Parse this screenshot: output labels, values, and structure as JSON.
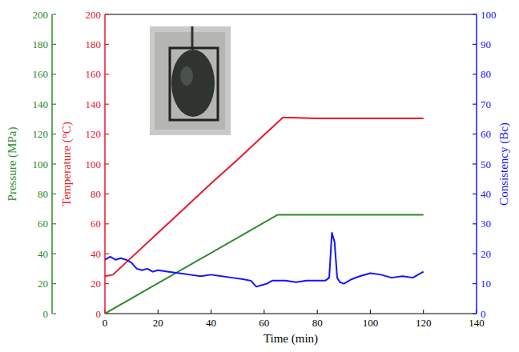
{
  "chart_data": {
    "type": "line",
    "x_label": "Time (min)",
    "y_label": "Temperature (°C)",
    "y2_label": "Consistency (Bc)",
    "y3_label": "Pressure (MPa)",
    "xlim": [
      0,
      140
    ],
    "xticks": [
      0,
      20,
      40,
      60,
      80,
      100,
      120,
      140
    ],
    "ylim": [
      0,
      200
    ],
    "yticks": [
      0,
      20,
      40,
      60,
      80,
      100,
      120,
      140,
      160,
      180,
      200
    ],
    "y2lim": [
      0,
      100
    ],
    "y2ticks": [
      0,
      10,
      20,
      30,
      40,
      50,
      60,
      70,
      80,
      90,
      100
    ],
    "y3lim": [
      0,
      200
    ],
    "y3ticks": [
      0,
      20,
      40,
      60,
      80,
      100,
      120,
      140,
      160,
      180,
      200
    ],
    "grid": false,
    "series": [
      {
        "axis": "y",
        "color": "#e8192c",
        "x": [
          0,
          3,
          10,
          20,
          30,
          40,
          50,
          60,
          67,
          70,
          80,
          90,
          100,
          110,
          120
        ],
        "values": [
          25,
          26,
          37.5,
          54,
          70.5,
          87,
          103,
          119.5,
          131,
          131,
          130.5,
          130.5,
          130.5,
          130.5,
          130.5
        ]
      },
      {
        "axis": "y3",
        "color": "#2e8b2e",
        "x": [
          0,
          65,
          120
        ],
        "values": [
          0,
          66,
          66
        ]
      },
      {
        "axis": "y2",
        "color": "#1414ff",
        "x": [
          0,
          2,
          4,
          6,
          8,
          10,
          12,
          14,
          16,
          18,
          20,
          24,
          28,
          32,
          36,
          40,
          44,
          48,
          52,
          55,
          57,
          59,
          61,
          63,
          65,
          68,
          72,
          76,
          80,
          83,
          84.5,
          85.5,
          86.5,
          87.5,
          88.5,
          90,
          93,
          96,
          100,
          104,
          108,
          112,
          116,
          120
        ],
        "values": [
          18,
          19,
          18,
          18.5,
          18,
          17,
          15,
          14.5,
          15,
          14,
          14.5,
          14,
          13.5,
          13,
          12.5,
          13,
          12.5,
          12,
          11.5,
          11,
          9,
          9.5,
          10,
          11,
          11,
          11,
          10.5,
          11,
          11,
          11,
          12,
          27,
          24,
          12,
          10.5,
          10,
          11.5,
          12.5,
          13.5,
          13,
          12,
          12.5,
          12,
          14
        ]
      }
    ]
  }
}
